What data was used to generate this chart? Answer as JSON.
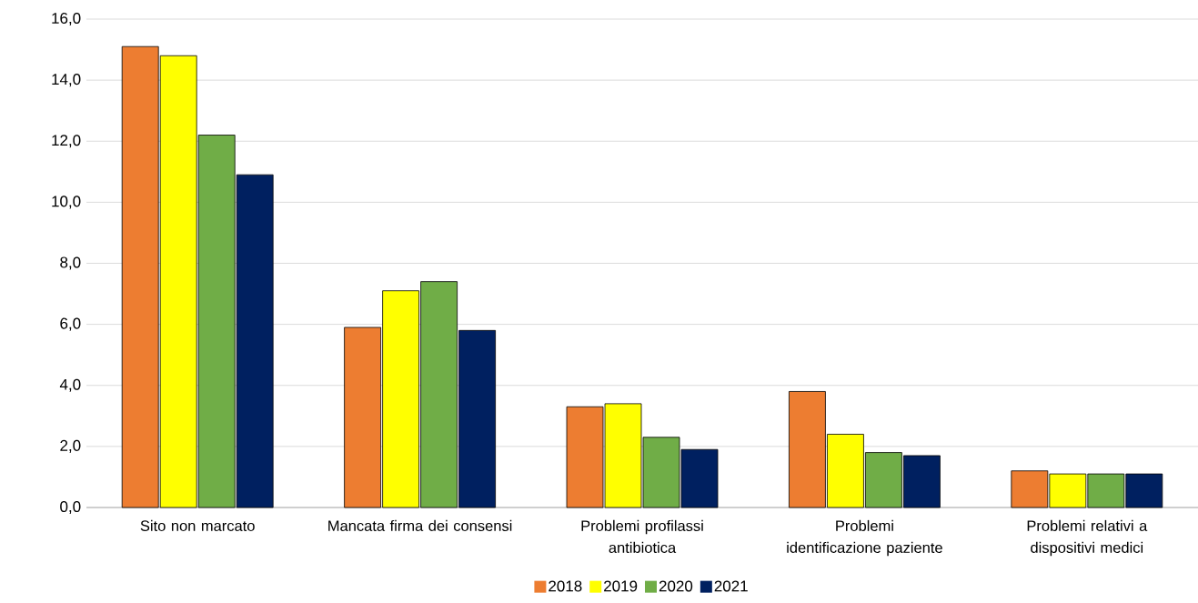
{
  "chart_data": {
    "type": "bar",
    "categories": [
      "Sito non marcato",
      "Mancata firma dei consensi",
      "Problemi profilassi antibiotica",
      "Problemi identificazione paziente",
      "Problemi relativi a dispositivi medici"
    ],
    "series": [
      {
        "name": "2018",
        "color": "#ed7d31",
        "values": [
          15.1,
          5.9,
          3.3,
          3.8,
          1.2
        ]
      },
      {
        "name": "2019",
        "color": "#ffff00",
        "values": [
          14.8,
          7.1,
          3.4,
          2.4,
          1.1
        ]
      },
      {
        "name": "2020",
        "color": "#70ad47",
        "values": [
          12.2,
          7.4,
          2.3,
          1.8,
          1.1
        ]
      },
      {
        "name": "2021",
        "color": "#002060",
        "values": [
          10.9,
          5.8,
          1.9,
          1.7,
          1.1
        ]
      }
    ],
    "ylim": [
      0,
      16
    ],
    "yticks": [
      {
        "value": 0,
        "label": "0,0"
      },
      {
        "value": 2,
        "label": "2,0"
      },
      {
        "value": 4,
        "label": "4,0"
      },
      {
        "value": 6,
        "label": "6,0"
      },
      {
        "value": 8,
        "label": "8,0"
      },
      {
        "value": 10,
        "label": "10,0"
      },
      {
        "value": 12,
        "label": "12,0"
      },
      {
        "value": 14,
        "label": "14,0"
      },
      {
        "value": 16,
        "label": "16,0"
      }
    ],
    "grid": "y",
    "legend": "bottom"
  }
}
